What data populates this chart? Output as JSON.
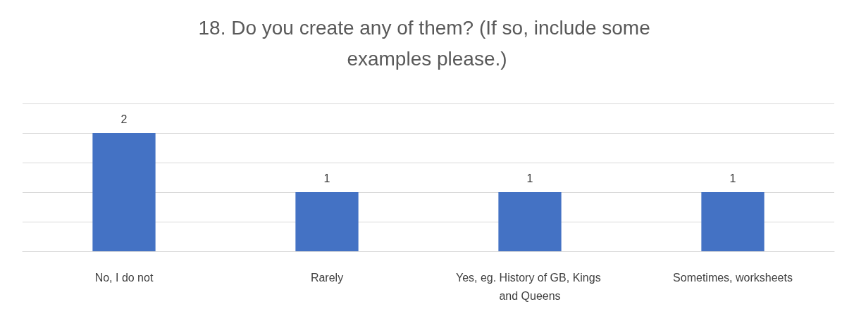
{
  "chart_data": {
    "type": "bar",
    "title": "18. Do you create any of them? (If so, include some examples please.)",
    "categories": [
      "No, I do not",
      "Rarely",
      "Yes, eg. History of GB, Kings and Queens",
      "Sometimes, worksheets"
    ],
    "values": [
      2,
      1,
      1,
      1
    ],
    "color": "#4472c4",
    "data_labels": true,
    "grid": "y",
    "tick_labels": "x",
    "ylim": [
      0,
      2.5
    ],
    "yticks": [
      {
        "value": 0,
        "label": null
      },
      {
        "value": 0.5,
        "label": null
      },
      {
        "value": 1,
        "label": null
      },
      {
        "value": 1.5,
        "label": null
      },
      {
        "value": 2,
        "label": null
      },
      {
        "value": 2.5,
        "label": null
      }
    ]
  }
}
